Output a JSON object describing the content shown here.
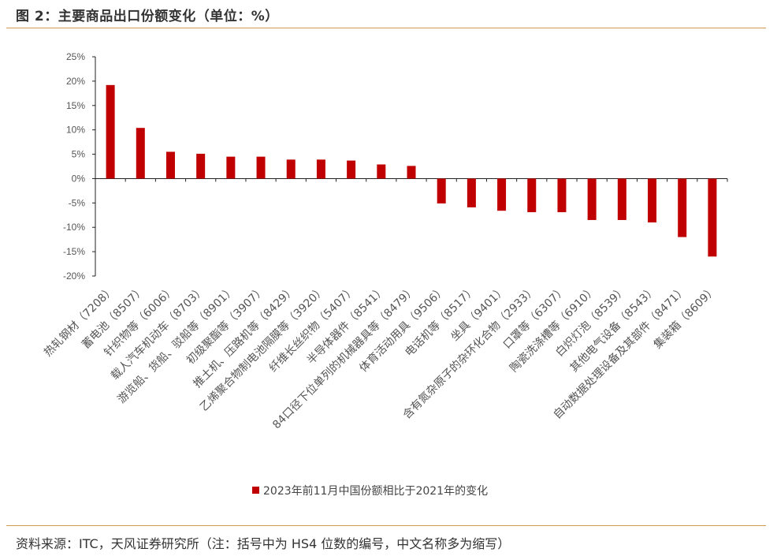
{
  "figure": {
    "title": "图 2：主要商品出口份额变化（单位：%）",
    "source": "资料来源：ITC，天风证券研究所（注：括号中为 HS4 位数的编号，中文名称多为缩写）"
  },
  "chart_data": {
    "type": "bar",
    "title": "",
    "xlabel": "",
    "ylabel": "",
    "ylim": [
      -20,
      25
    ],
    "yticks": [
      25,
      20,
      15,
      10,
      5,
      0,
      -5,
      -10,
      -15,
      -20
    ],
    "ytick_labels": [
      "25%",
      "20%",
      "15%",
      "10%",
      "5%",
      "0%",
      "-5%",
      "-10%",
      "-15%",
      "-20%"
    ],
    "grid": false,
    "legend_position": "bottom",
    "bar_color": "#c00000",
    "categories": [
      "热轧钢材（7208）",
      "蓄电池（8507）",
      "针织物等（6006）",
      "载人汽车机动车（8703）",
      "游览船、货船、驳船等（8901）",
      "初级聚酯等（3907）",
      "推土机、压路机等（8429）",
      "乙烯聚合物制电池隔膜等（3920）",
      "纤维长丝织物（5407）",
      "半导体器件（8541）",
      "84口径下位单列的机械器具等（8479）",
      "体育活动用具（9506）",
      "电话机等（8517）",
      "坐具（9401）",
      "含有氮杂原子的杂环化合物（2933）",
      "口罩等（6307）",
      "陶瓷洗涤槽等（6910）",
      "白炽灯泡（8539）",
      "其他电气设备（8543）",
      "自动数据处理设备及其部件（8471）",
      "集装箱（8609）"
    ],
    "series": [
      {
        "name": "2023年前11月中国份额相比于2021年的变化",
        "values": [
          19.2,
          10.4,
          5.5,
          5.1,
          4.5,
          4.5,
          3.9,
          3.9,
          3.7,
          2.9,
          2.6,
          -5.1,
          -5.9,
          -6.6,
          -6.9,
          -6.9,
          -8.5,
          -8.5,
          -9.0,
          -12.0,
          -16.0
        ]
      }
    ]
  }
}
